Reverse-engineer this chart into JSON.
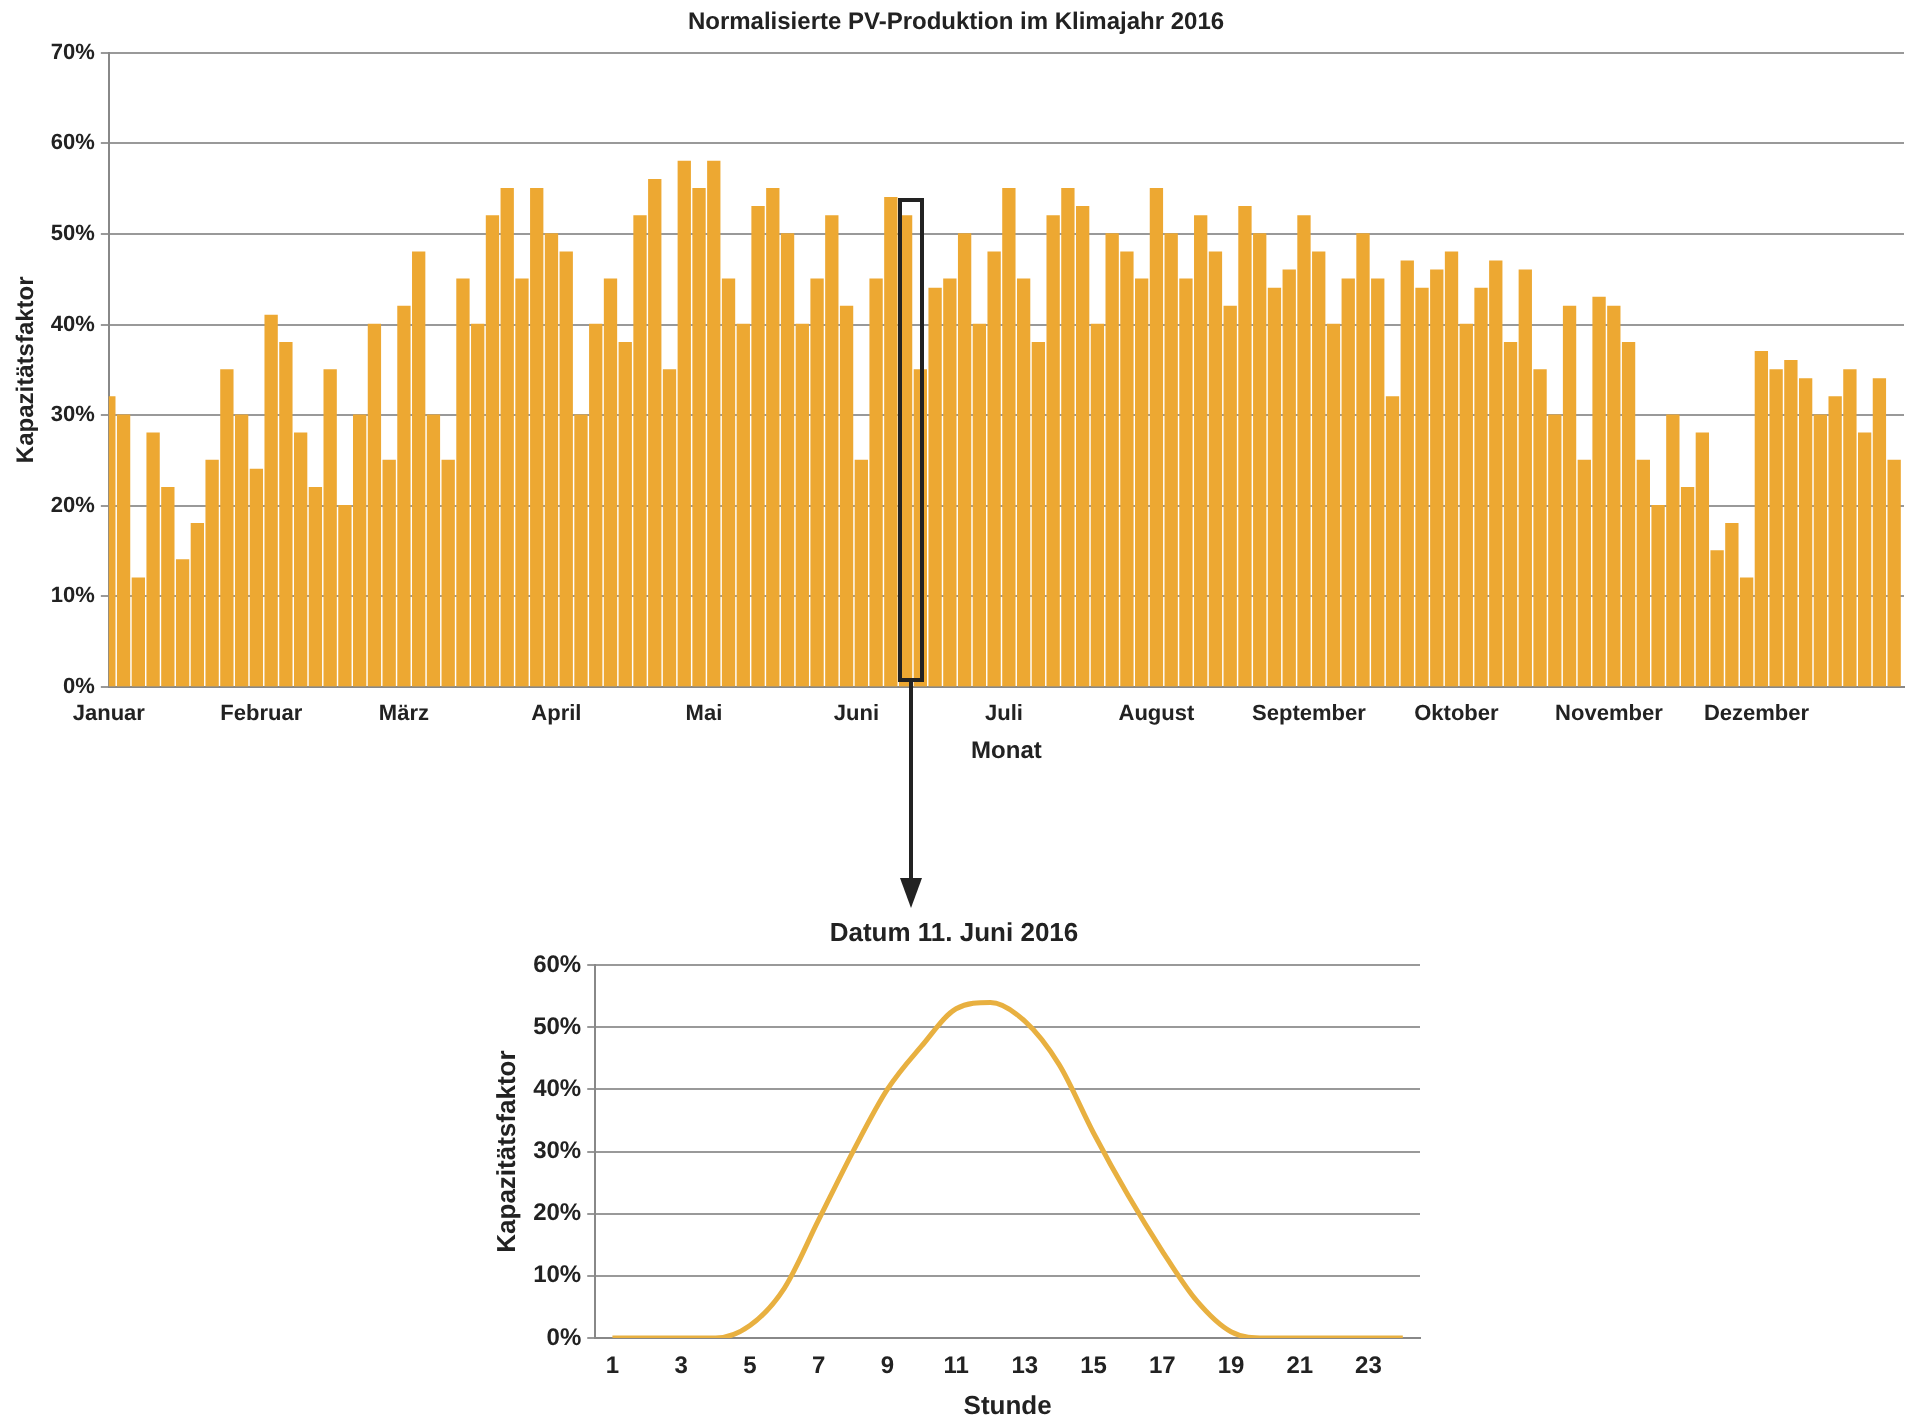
{
  "chart_data": [
    {
      "type": "bar",
      "title": "Normalisierte PV-Produktion im Klimajahr 2016",
      "xlabel": "Monat",
      "ylabel": "Kapazitätsfaktor",
      "color": "#eda832",
      "grid": "y",
      "x": [
        "2016-01-01",
        "2016-01-04",
        "2016-01-07",
        "2016-01-10",
        "2016-01-13",
        "2016-01-16",
        "2016-01-19",
        "2016-01-22",
        "2016-01-25",
        "2016-01-28",
        "2016-01-31",
        "2016-02-03",
        "2016-02-06",
        "2016-02-09",
        "2016-02-12",
        "2016-02-15",
        "2016-02-18",
        "2016-02-21",
        "2016-02-24",
        "2016-02-27",
        "2016-03-01",
        "2016-03-04",
        "2016-03-07",
        "2016-03-10",
        "2016-03-13",
        "2016-03-16",
        "2016-03-19",
        "2016-03-22",
        "2016-03-25",
        "2016-03-28",
        "2016-03-31",
        "2016-04-03",
        "2016-04-06",
        "2016-04-09",
        "2016-04-12",
        "2016-04-15",
        "2016-04-18",
        "2016-04-21",
        "2016-04-24",
        "2016-04-27",
        "2016-04-30",
        "2016-05-03",
        "2016-05-06",
        "2016-05-09",
        "2016-05-12",
        "2016-05-15",
        "2016-05-18",
        "2016-05-21",
        "2016-05-24",
        "2016-05-27",
        "2016-05-30",
        "2016-06-02",
        "2016-06-05",
        "2016-06-08",
        "2016-06-11",
        "2016-06-14",
        "2016-06-17",
        "2016-06-20",
        "2016-06-23",
        "2016-06-26",
        "2016-06-29",
        "2016-07-02",
        "2016-07-05",
        "2016-07-08",
        "2016-07-11",
        "2016-07-14",
        "2016-07-17",
        "2016-07-20",
        "2016-07-23",
        "2016-07-26",
        "2016-07-29",
        "2016-08-01",
        "2016-08-04",
        "2016-08-07",
        "2016-08-10",
        "2016-08-13",
        "2016-08-16",
        "2016-08-19",
        "2016-08-22",
        "2016-08-25",
        "2016-08-28",
        "2016-08-31",
        "2016-09-03",
        "2016-09-06",
        "2016-09-09",
        "2016-09-12",
        "2016-09-15",
        "2016-09-18",
        "2016-09-21",
        "2016-09-24",
        "2016-09-27",
        "2016-09-30",
        "2016-10-03",
        "2016-10-06",
        "2016-10-09",
        "2016-10-12",
        "2016-10-15",
        "2016-10-18",
        "2016-10-21",
        "2016-10-24",
        "2016-10-27",
        "2016-10-30",
        "2016-11-02",
        "2016-11-05",
        "2016-11-08",
        "2016-11-11",
        "2016-11-14",
        "2016-11-17",
        "2016-11-20",
        "2016-11-23",
        "2016-11-26",
        "2016-11-29",
        "2016-12-02",
        "2016-12-05",
        "2016-12-08",
        "2016-12-11",
        "2016-12-14",
        "2016-12-17",
        "2016-12-20",
        "2016-12-23",
        "2016-12-26",
        "2016-12-29"
      ],
      "values": [
        32,
        30,
        12,
        28,
        22,
        14,
        18,
        25,
        35,
        30,
        24,
        41,
        38,
        28,
        22,
        35,
        20,
        30,
        40,
        25,
        42,
        48,
        30,
        25,
        45,
        40,
        52,
        55,
        45,
        55,
        50,
        48,
        30,
        40,
        45,
        38,
        52,
        56,
        35,
        58,
        55,
        58,
        45,
        40,
        53,
        55,
        50,
        40,
        45,
        52,
        42,
        25,
        45,
        54,
        52,
        35,
        44,
        45,
        50,
        40,
        48,
        55,
        45,
        38,
        52,
        55,
        53,
        40,
        50,
        48,
        45,
        55,
        50,
        45,
        52,
        48,
        42,
        53,
        50,
        44,
        46,
        52,
        48,
        40,
        45,
        50,
        45,
        32,
        47,
        44,
        46,
        48,
        40,
        44,
        47,
        38,
        46,
        35,
        30,
        42,
        25,
        43,
        42,
        38,
        25,
        20,
        30,
        22,
        28,
        15,
        18,
        12,
        37,
        35,
        36,
        34,
        30,
        32,
        35,
        28,
        34,
        25
      ],
      "xlim": [
        "2016-01-01",
        "2016-12-31"
      ],
      "xticks": [
        {
          "value": "2016-01-01",
          "label": "Januar"
        },
        {
          "value": "2016-02-01",
          "label": "Februar"
        },
        {
          "value": "2016-03-01",
          "label": "März"
        },
        {
          "value": "2016-04-01",
          "label": "April"
        },
        {
          "value": "2016-05-01",
          "label": "Mai"
        },
        {
          "value": "2016-06-01",
          "label": "Juni"
        },
        {
          "value": "2016-07-01",
          "label": "Juli"
        },
        {
          "value": "2016-08-01",
          "label": "August"
        },
        {
          "value": "2016-09-01",
          "label": "September"
        },
        {
          "value": "2016-10-01",
          "label": "Oktober"
        },
        {
          "value": "2016-11-01",
          "label": "November"
        },
        {
          "value": "2016-12-01",
          "label": "Dezember"
        }
      ],
      "ylim": [
        0,
        70
      ],
      "yticks": [
        {
          "value": 0,
          "label": "0%"
        },
        {
          "value": 10,
          "label": "10%"
        },
        {
          "value": 20,
          "label": "20%"
        },
        {
          "value": 30,
          "label": "30%"
        },
        {
          "value": 40,
          "label": "40%"
        },
        {
          "value": 50,
          "label": "50%"
        },
        {
          "value": 60,
          "label": "60%"
        },
        {
          "value": 70,
          "label": "70%"
        }
      ]
    },
    {
      "type": "line",
      "title": "Datum 11. Juni 2016",
      "xlabel": "Stunde",
      "ylabel": "Kapazitätsfaktor",
      "color": "#e8b040",
      "grid": "y",
      "marker": "none",
      "x": [
        1,
        2,
        3,
        4,
        5,
        6,
        7,
        8,
        9,
        10,
        11,
        12,
        13,
        14,
        15,
        16,
        17,
        18,
        19,
        20,
        21,
        22,
        23,
        24
      ],
      "values": [
        0,
        0,
        0,
        0,
        2,
        8,
        19,
        30,
        40,
        47,
        53,
        54,
        51,
        44,
        33,
        23,
        14,
        6,
        1,
        0,
        0,
        0,
        0,
        0
      ],
      "xlim": [
        0.5,
        24.5
      ],
      "xticks": [
        1,
        3,
        5,
        7,
        9,
        11,
        13,
        15,
        17,
        19,
        21,
        23
      ],
      "ylim": [
        0,
        60
      ],
      "yticks": [
        {
          "value": 0,
          "label": "0%"
        },
        {
          "value": 10,
          "label": "10%"
        },
        {
          "value": 20,
          "label": "20%"
        },
        {
          "value": 30,
          "label": "30%"
        },
        {
          "value": 40,
          "label": "40%"
        },
        {
          "value": 50,
          "label": "50%"
        },
        {
          "value": 60,
          "label": "60%"
        }
      ]
    }
  ]
}
